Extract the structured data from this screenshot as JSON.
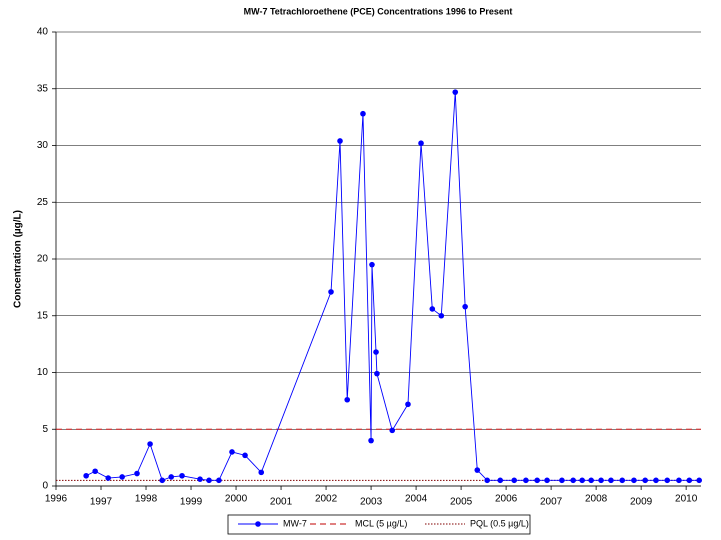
{
  "chart_data": {
    "type": "line",
    "title": "MW-7 Tetrachloroethene (PCE) Concentrations 1996 to Present",
    "y_label": "Concentration (µg/L)",
    "x": [
      1996.67,
      1996.87,
      1997.16,
      1997.47,
      1997.8,
      1998.09,
      1998.36,
      1998.56,
      1998.8,
      1999.2,
      1999.4,
      1999.62,
      1999.91,
      2000.2,
      2000.56,
      2002.11,
      2002.31,
      2002.47,
      2002.82,
      2003.0,
      2003.02,
      2003.11,
      2003.13,
      2003.47,
      2003.82,
      2004.11,
      2004.36,
      2004.56,
      2004.87,
      2005.09,
      2005.36,
      2005.58,
      2005.87,
      2006.18,
      2006.44,
      2006.69,
      2006.91,
      2007.24,
      2007.49,
      2007.69,
      2007.89,
      2008.11,
      2008.33,
      2008.58,
      2008.84,
      2009.09,
      2009.33,
      2009.58,
      2009.84,
      2010.07,
      2010.29
    ],
    "series": [
      {
        "name": "MW-7",
        "color": "#0000ff",
        "values": [
          0.9,
          1.3,
          0.7,
          0.8,
          1.1,
          3.7,
          0.5,
          0.8,
          0.9,
          0.6,
          0.5,
          0.5,
          3.0,
          2.7,
          1.2,
          17.1,
          30.4,
          7.6,
          32.8,
          4.0,
          19.5,
          11.8,
          9.9,
          4.9,
          7.2,
          30.2,
          15.6,
          15.0,
          34.7,
          15.8,
          1.4,
          0.5,
          0.5,
          0.5,
          0.5,
          0.5,
          0.5,
          0.5,
          0.5,
          0.5,
          0.5,
          0.5,
          0.5,
          0.5,
          0.5,
          0.5,
          0.5,
          0.5,
          0.5,
          0.5,
          0.5
        ]
      }
    ],
    "reference_lines": [
      {
        "name": "MCL (5 µg/L)",
        "value": 5,
        "color": "#c00000",
        "style": "dashed"
      },
      {
        "name": "PQL (0.5 µg/L)",
        "value": 0.5,
        "color": "#800000",
        "style": "dotted"
      }
    ],
    "xlim": [
      1996,
      2010.33
    ],
    "xticks": [
      1996,
      1997,
      1998,
      1999,
      2000,
      2001,
      2002,
      2003,
      2004,
      2005,
      2006,
      2007,
      2008,
      2009,
      2010
    ],
    "ylim": [
      0,
      40
    ],
    "yticks": [
      0,
      5,
      10,
      15,
      20,
      25,
      30,
      35,
      40
    ],
    "grid": true,
    "legend": "bottom"
  }
}
